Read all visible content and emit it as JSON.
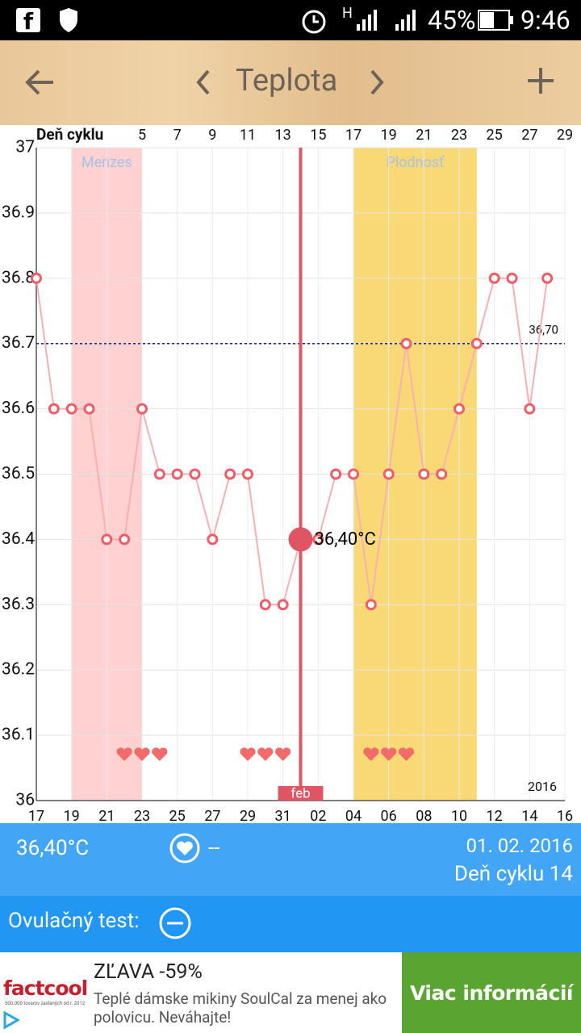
{
  "status_bar": {
    "network": "H",
    "battery": "45%",
    "time": "9:46"
  },
  "toolbar": {
    "title": "Teplota"
  },
  "chart_data": {
    "type": "line",
    "x_label": "Deň cyklu",
    "x": [
      -1,
      0,
      1,
      2,
      3,
      4,
      5,
      6,
      7,
      8,
      9,
      10,
      11,
      12,
      13,
      14,
      15,
      16,
      17,
      18,
      19,
      20,
      21,
      22,
      23,
      24,
      25,
      26,
      27,
      28
    ],
    "values": [
      36.8,
      36.6,
      36.6,
      36.6,
      36.4,
      36.4,
      36.6,
      36.5,
      36.5,
      36.5,
      36.4,
      36.5,
      36.5,
      36.3,
      36.3,
      36.4,
      36.4,
      36.5,
      36.5,
      36.3,
      36.5,
      36.7,
      36.5,
      36.5,
      36.6,
      36.7,
      36.8,
      36.8,
      36.6,
      36.8
    ],
    "color": "#f7b0b0",
    "marker_color": "#ef5b67",
    "xlim": [
      -1,
      29
    ],
    "xticks": [
      5,
      7,
      9,
      11,
      13,
      15,
      17,
      19,
      21,
      23,
      25,
      27,
      29
    ],
    "x2ticks": [
      {
        "value": -1,
        "label": "17"
      },
      {
        "value": 1,
        "label": "19"
      },
      {
        "value": 3,
        "label": "21"
      },
      {
        "value": 5,
        "label": "23"
      },
      {
        "value": 7,
        "label": "25"
      },
      {
        "value": 9,
        "label": "27"
      },
      {
        "value": 11,
        "label": "29"
      },
      {
        "value": 13,
        "label": "31"
      },
      {
        "value": 15,
        "label": "02"
      },
      {
        "value": 17,
        "label": "04"
      },
      {
        "value": 19,
        "label": "06"
      },
      {
        "value": 21,
        "label": "08"
      },
      {
        "value": 23,
        "label": "10"
      },
      {
        "value": 25,
        "label": "12"
      },
      {
        "value": 27,
        "label": "14"
      },
      {
        "value": 29,
        "label": "16"
      }
    ],
    "ylim": [
      36,
      37
    ],
    "yticks": [
      36,
      36.1,
      36.2,
      36.3,
      36.4,
      36.5,
      36.6,
      36.7,
      36.8,
      36.9,
      37
    ],
    "grid": true,
    "bands": [
      {
        "name": "Menzes",
        "start": 1,
        "end": 5,
        "color": "#ffd1d1",
        "text_color": "#a9c0e8"
      },
      {
        "name": "Plodnosť",
        "start": 17,
        "end": 24,
        "color": "#f9d976",
        "text_color": "#a9c0e8"
      }
    ],
    "reference_line": {
      "value": 36.7,
      "label": "36,70",
      "color": "#1a237e"
    },
    "selected": {
      "x": 14,
      "value": 36.4,
      "label": "36,40°C",
      "month_label": "feb",
      "color": "#e05563"
    },
    "year_label": "2016",
    "heart_days": [
      4,
      5,
      6,
      11,
      12,
      13,
      18,
      19,
      20
    ],
    "heart_color": "#f26b6b"
  },
  "info": {
    "temperature": "36,40°C",
    "heart_value": "--",
    "date": "01. 02. 2016",
    "cycle_day": "Deň cyklu 14"
  },
  "ovulation": {
    "label": "Ovulačný test:"
  },
  "ad": {
    "brand": "factcool",
    "brand_tagline": "500.000 tovarov zaslaných od r. 2012",
    "headline": "ZĽAVA -59%",
    "text": "Teplé dámske mikiny SoulCal za menej ako polovicu. Neváhajte!",
    "button": "Viac informácií"
  }
}
